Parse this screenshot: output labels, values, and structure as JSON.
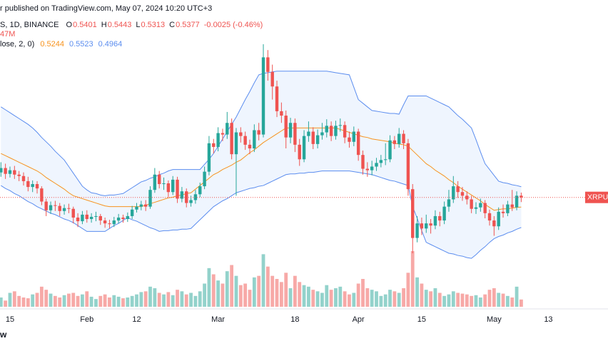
{
  "header": {
    "publish": "r published on TradingView.com, May 07, 2024 10:20 UTC+3",
    "symbol": "S, 1D, BINANCE",
    "ohlc": [
      {
        "key": "O",
        "value": "0.5401"
      },
      {
        "key": "H",
        "value": "0.5443"
      },
      {
        "key": "L",
        "value": "0.5313"
      },
      {
        "key": "C",
        "value": "0.5377"
      }
    ],
    "change": "-0.0025 (-0.46%)",
    "volume_line": "47M",
    "bb_line": "lose, 2, 0)",
    "bb_values": [
      "0.5244",
      "0.5523",
      "0.4964"
    ],
    "symbol_tag": "XRPUS",
    "corner": "w"
  },
  "chart_data": {
    "type": "candlestick",
    "up_color": "#26a69a",
    "down_color": "#ef5350",
    "volume_up_color": "#93d2cb",
    "volume_down_color": "#f7a9a7",
    "basis_color": "#f7931e",
    "band_color": "#5b8def",
    "band_fill": "#e8f1fd",
    "categories": [
      null,
      null,
      "15",
      null,
      null,
      null,
      null,
      null,
      null,
      null,
      null,
      null,
      null,
      null,
      null,
      null,
      null,
      null,
      null,
      "Feb",
      null,
      null,
      null,
      null,
      null,
      null,
      null,
      null,
      null,
      null,
      "12",
      null,
      null,
      null,
      null,
      null,
      null,
      null,
      null,
      null,
      null,
      null,
      null,
      null,
      null,
      null,
      null,
      null,
      "Mar",
      null,
      null,
      null,
      null,
      null,
      null,
      null,
      null,
      null,
      null,
      null,
      null,
      null,
      null,
      null,
      null,
      "18",
      null,
      null,
      null,
      null,
      null,
      null,
      null,
      null,
      null,
      null,
      null,
      null,
      null,
      "Apr",
      null,
      null,
      null,
      null,
      null,
      null,
      null,
      null,
      null,
      null,
      null,
      null,
      null,
      "15",
      null,
      null,
      null,
      null,
      null,
      null,
      null,
      null,
      null,
      null,
      null,
      null,
      null,
      null,
      null,
      "May",
      null,
      null,
      null,
      null,
      null,
      null,
      null,
      null,
      null,
      null,
      null,
      "13",
      null,
      null,
      null,
      null,
      null,
      null,
      null,
      null,
      null,
      null,
      null,
      null,
      null
    ],
    "open": [
      0.572,
      0.578,
      0.57,
      0.575,
      0.569,
      0.567,
      0.56,
      0.552,
      0.556,
      0.55,
      0.532,
      0.52,
      0.527,
      0.526,
      0.519,
      0.523,
      0.522,
      0.51,
      0.505,
      0.514,
      0.508,
      0.511,
      0.512,
      0.506,
      0.502,
      0.501,
      0.506,
      0.51,
      0.508,
      0.512,
      0.521,
      0.525,
      0.528,
      0.525,
      0.548,
      0.569,
      0.556,
      0.557,
      0.545,
      0.562,
      0.536,
      0.546,
      0.53,
      0.534,
      0.542,
      0.553,
      0.573,
      0.612,
      0.607,
      0.626,
      0.624,
      0.64,
      0.597,
      0.627,
      0.622,
      0.61,
      0.605,
      0.63,
      0.624,
      0.73,
      0.71,
      0.69,
      0.656,
      0.65,
      0.62,
      0.64,
      0.61,
      0.59,
      0.622,
      0.628,
      0.611,
      0.623,
      0.627,
      0.636,
      0.622,
      0.636,
      0.637,
      0.62,
      0.614,
      0.628,
      0.596,
      0.577,
      0.575,
      0.58,
      0.585,
      0.589,
      0.59,
      0.616,
      0.611,
      0.625,
      0.612,
      0.549,
      0.482,
      0.502,
      0.495,
      0.502,
      0.499,
      0.512,
      0.506,
      0.525,
      0.535,
      0.553,
      0.545,
      0.54,
      0.535,
      0.522,
      0.524,
      0.53,
      0.516,
      0.506,
      0.498,
      0.518,
      0.516,
      0.528,
      0.524,
      0.5401,
      null,
      null,
      null,
      null,
      null,
      null,
      null,
      null,
      null,
      null,
      null,
      null,
      null,
      null,
      null,
      null,
      null,
      null,
      null
    ],
    "high": [
      0.586,
      0.584,
      0.58,
      0.581,
      0.574,
      0.572,
      0.566,
      0.561,
      0.56,
      0.553,
      0.536,
      0.532,
      0.533,
      0.53,
      0.528,
      0.529,
      0.525,
      0.516,
      0.519,
      0.52,
      0.516,
      0.518,
      0.515,
      0.51,
      0.507,
      0.511,
      0.515,
      0.514,
      0.517,
      0.526,
      0.53,
      0.533,
      0.534,
      0.553,
      0.578,
      0.574,
      0.565,
      0.561,
      0.567,
      0.566,
      0.552,
      0.55,
      0.54,
      0.548,
      0.558,
      0.58,
      0.622,
      0.618,
      0.634,
      0.632,
      0.655,
      0.646,
      0.633,
      0.634,
      0.628,
      0.617,
      0.638,
      0.64,
      0.748,
      0.74,
      0.72,
      0.698,
      0.668,
      0.657,
      0.647,
      0.646,
      0.618,
      0.63,
      0.642,
      0.634,
      0.631,
      0.64,
      0.645,
      0.642,
      0.643,
      0.646,
      0.642,
      0.628,
      0.635,
      0.632,
      0.602,
      0.586,
      0.588,
      0.592,
      0.596,
      0.612,
      0.623,
      0.622,
      0.633,
      0.63,
      0.618,
      0.556,
      0.512,
      0.51,
      0.514,
      0.508,
      0.52,
      0.518,
      0.532,
      0.548,
      0.567,
      0.56,
      0.552,
      0.546,
      0.54,
      0.531,
      0.536,
      0.534,
      0.521,
      0.512,
      0.524,
      0.528,
      0.533,
      0.548,
      0.546,
      0.5443,
      null,
      null,
      null,
      null,
      null,
      null,
      null,
      null,
      null,
      null,
      null,
      null,
      null,
      null,
      null,
      null,
      null,
      null,
      null
    ],
    "low": [
      0.566,
      0.563,
      0.565,
      0.563,
      0.56,
      0.554,
      0.546,
      0.545,
      0.543,
      0.527,
      0.512,
      0.515,
      0.519,
      0.512,
      0.514,
      0.516,
      0.502,
      0.497,
      0.501,
      0.503,
      0.503,
      0.505,
      0.5,
      0.496,
      0.495,
      0.497,
      0.502,
      0.503,
      0.504,
      0.508,
      0.517,
      0.52,
      0.519,
      0.522,
      0.544,
      0.55,
      0.548,
      0.538,
      0.541,
      0.53,
      0.531,
      0.524,
      0.525,
      0.529,
      0.538,
      0.549,
      0.568,
      0.598,
      0.601,
      0.615,
      0.618,
      0.59,
      0.54,
      0.613,
      0.603,
      0.597,
      0.6,
      0.616,
      0.62,
      0.698,
      0.672,
      0.648,
      0.64,
      0.605,
      0.612,
      0.6,
      0.581,
      0.586,
      0.614,
      0.604,
      0.605,
      0.617,
      0.62,
      0.615,
      0.617,
      0.628,
      0.612,
      0.606,
      0.608,
      0.588,
      0.569,
      0.566,
      0.568,
      0.574,
      0.579,
      0.582,
      0.586,
      0.604,
      0.606,
      0.604,
      0.54,
      0.461,
      0.476,
      0.486,
      0.489,
      0.488,
      0.494,
      0.498,
      0.501,
      0.518,
      0.53,
      0.537,
      0.533,
      0.528,
      0.516,
      0.515,
      0.518,
      0.509,
      0.499,
      0.485,
      0.493,
      0.51,
      0.512,
      0.519,
      0.52,
      0.5313,
      null,
      null,
      null,
      null,
      null,
      null,
      null,
      null,
      null,
      null,
      null,
      null,
      null,
      null,
      null,
      null,
      null,
      null,
      null
    ],
    "close": [
      0.578,
      0.57,
      0.575,
      0.569,
      0.567,
      0.56,
      0.552,
      0.556,
      0.55,
      0.532,
      0.52,
      0.527,
      0.526,
      0.519,
      0.523,
      0.522,
      0.51,
      0.505,
      0.514,
      0.508,
      0.511,
      0.512,
      0.506,
      0.502,
      0.501,
      0.506,
      0.51,
      0.508,
      0.512,
      0.521,
      0.525,
      0.528,
      0.525,
      0.548,
      0.569,
      0.556,
      0.557,
      0.545,
      0.562,
      0.536,
      0.546,
      0.53,
      0.534,
      0.542,
      0.553,
      0.573,
      0.612,
      0.607,
      0.626,
      0.624,
      0.64,
      0.597,
      0.627,
      0.622,
      0.61,
      0.605,
      0.63,
      0.624,
      0.73,
      0.71,
      0.69,
      0.656,
      0.65,
      0.62,
      0.64,
      0.61,
      0.59,
      0.622,
      0.628,
      0.611,
      0.623,
      0.627,
      0.636,
      0.622,
      0.636,
      0.637,
      0.62,
      0.614,
      0.628,
      0.596,
      0.577,
      0.575,
      0.58,
      0.585,
      0.589,
      0.59,
      0.616,
      0.611,
      0.625,
      0.612,
      0.549,
      0.482,
      0.502,
      0.495,
      0.502,
      0.499,
      0.512,
      0.506,
      0.525,
      0.535,
      0.553,
      0.545,
      0.54,
      0.535,
      0.522,
      0.524,
      0.53,
      0.516,
      0.506,
      0.498,
      0.518,
      0.516,
      0.528,
      0.524,
      0.54,
      0.5377,
      null,
      null,
      null,
      null,
      null,
      null,
      null,
      null,
      null,
      null,
      null,
      null,
      null,
      null,
      null,
      null,
      null,
      null,
      null
    ],
    "volume": [
      60,
      40,
      90,
      100,
      70,
      60,
      55,
      80,
      90,
      130,
      110,
      85,
      70,
      60,
      75,
      85,
      90,
      70,
      80,
      100,
      65,
      50,
      70,
      80,
      60,
      75,
      65,
      55,
      60,
      70,
      80,
      95,
      100,
      130,
      120,
      90,
      80,
      95,
      75,
      110,
      100,
      80,
      90,
      70,
      100,
      150,
      250,
      210,
      170,
      150,
      230,
      270,
      200,
      140,
      150,
      110,
      190,
      200,
      340,
      260,
      200,
      180,
      160,
      220,
      120,
      200,
      160,
      140,
      130,
      110,
      100,
      90,
      140,
      110,
      120,
      130,
      100,
      80,
      90,
      150,
      180,
      120,
      110,
      100,
      70,
      80,
      110,
      100,
      90,
      120,
      220,
      360,
      190,
      150,
      110,
      100,
      120,
      90,
      70,
      80,
      100,
      90,
      85,
      80,
      70,
      75,
      60,
      80,
      110,
      120,
      90,
      85,
      70,
      60,
      130,
      47,
      null,
      null,
      null,
      null,
      null,
      null,
      null,
      null,
      null,
      null,
      null,
      null,
      null,
      null,
      null,
      null,
      null,
      null,
      null
    ],
    "bb_upper": [
      0.662,
      0.658,
      0.654,
      0.65,
      0.646,
      0.642,
      0.638,
      0.633,
      0.627,
      0.62,
      0.614,
      0.608,
      0.601,
      0.595,
      0.589,
      0.58,
      0.571,
      0.562,
      0.553,
      0.548,
      0.544,
      0.543,
      0.541,
      0.54,
      0.541,
      0.541,
      0.542,
      0.543,
      0.547,
      0.551,
      0.555,
      0.559,
      0.561,
      0.564,
      0.566,
      0.569,
      0.571,
      0.574,
      0.576,
      0.576,
      0.576,
      0.576,
      0.576,
      0.576,
      0.576,
      0.583,
      0.59,
      0.598,
      0.608,
      0.618,
      0.628,
      0.638,
      0.648,
      0.66,
      0.672,
      0.683,
      0.695,
      0.706,
      0.708,
      0.709,
      0.71,
      0.711,
      0.711,
      0.711,
      0.711,
      0.711,
      0.711,
      0.711,
      0.711,
      0.711,
      0.711,
      0.711,
      0.711,
      0.71,
      0.709,
      0.708,
      0.707,
      0.706,
      0.689,
      0.672,
      0.667,
      0.662,
      0.657,
      0.656,
      0.655,
      0.654,
      0.653,
      0.653,
      0.652,
      0.665,
      0.677,
      0.677,
      0.677,
      0.677,
      0.677,
      0.674,
      0.671,
      0.668,
      0.665,
      0.662,
      0.656,
      0.65,
      0.645,
      0.639,
      0.633,
      0.617,
      0.6,
      0.584,
      0.576,
      0.568,
      0.56,
      0.558,
      0.557,
      0.555,
      0.554,
      0.5523,
      null,
      null,
      null,
      null,
      null,
      null,
      null,
      null,
      null,
      null,
      null,
      null,
      null,
      null,
      null,
      null,
      null,
      null,
      null
    ],
    "bb_basis": [
      0.598,
      0.595,
      0.592,
      0.589,
      0.586,
      0.583,
      0.58,
      0.577,
      0.574,
      0.57,
      0.565,
      0.561,
      0.557,
      0.553,
      0.549,
      0.544,
      0.54,
      0.538,
      0.536,
      0.534,
      0.532,
      0.53,
      0.528,
      0.526,
      0.525,
      0.525,
      0.525,
      0.525,
      0.525,
      0.525,
      0.525,
      0.525,
      0.527,
      0.529,
      0.531,
      0.533,
      0.535,
      0.537,
      0.538,
      0.54,
      0.541,
      0.543,
      0.544,
      0.549,
      0.554,
      0.559,
      0.564,
      0.569,
      0.572,
      0.576,
      0.579,
      0.582,
      0.586,
      0.589,
      0.594,
      0.599,
      0.603,
      0.608,
      0.613,
      0.617,
      0.621,
      0.625,
      0.629,
      0.633,
      0.633,
      0.633,
      0.633,
      0.633,
      0.633,
      0.633,
      0.633,
      0.633,
      0.633,
      0.633,
      0.633,
      0.631,
      0.629,
      0.627,
      0.625,
      0.623,
      0.621,
      0.62,
      0.618,
      0.617,
      0.616,
      0.615,
      0.614,
      0.612,
      0.611,
      0.61,
      0.608,
      0.602,
      0.596,
      0.59,
      0.584,
      0.58,
      0.575,
      0.571,
      0.567,
      0.562,
      0.558,
      0.553,
      0.549,
      0.545,
      0.541,
      0.537,
      0.533,
      0.528,
      0.524,
      0.52,
      0.521,
      0.522,
      0.522,
      0.523,
      0.524,
      0.5244,
      null,
      null,
      null,
      null,
      null,
      null,
      null,
      null,
      null,
      null,
      null,
      null,
      null,
      null,
      null,
      null,
      null,
      null,
      null
    ],
    "bb_lower": [
      0.554,
      0.55,
      0.547,
      0.543,
      0.54,
      0.536,
      0.532,
      0.529,
      0.525,
      0.522,
      0.519,
      0.516,
      0.514,
      0.511,
      0.508,
      0.506,
      0.503,
      0.499,
      0.495,
      0.491,
      0.491,
      0.491,
      0.491,
      0.491,
      0.495,
      0.499,
      0.502,
      0.506,
      0.51,
      0.507,
      0.505,
      0.502,
      0.499,
      0.496,
      0.494,
      0.491,
      0.492,
      0.492,
      0.493,
      0.493,
      0.494,
      0.494,
      0.495,
      0.501,
      0.507,
      0.513,
      0.519,
      0.525,
      0.529,
      0.533,
      0.536,
      0.54,
      0.544,
      0.546,
      0.548,
      0.55,
      0.551,
      0.553,
      0.554,
      0.557,
      0.56,
      0.563,
      0.566,
      0.569,
      0.57,
      0.57,
      0.571,
      0.571,
      0.572,
      0.572,
      0.573,
      0.574,
      0.574,
      0.574,
      0.574,
      0.574,
      0.574,
      0.574,
      0.573,
      0.572,
      0.571,
      0.57,
      0.569,
      0.567,
      0.565,
      0.563,
      0.561,
      0.56,
      0.558,
      0.556,
      0.554,
      0.525,
      0.509,
      0.492,
      0.476,
      0.473,
      0.47,
      0.467,
      0.464,
      0.461,
      0.46,
      0.458,
      0.457,
      0.455,
      0.454,
      0.459,
      0.465,
      0.47,
      0.476,
      0.481,
      0.484,
      0.486,
      0.489,
      0.491,
      0.494,
      0.4964,
      null,
      null,
      null,
      null,
      null,
      null,
      null,
      null,
      null,
      null,
      null,
      null,
      null,
      null,
      null,
      null,
      null,
      null,
      null
    ]
  }
}
